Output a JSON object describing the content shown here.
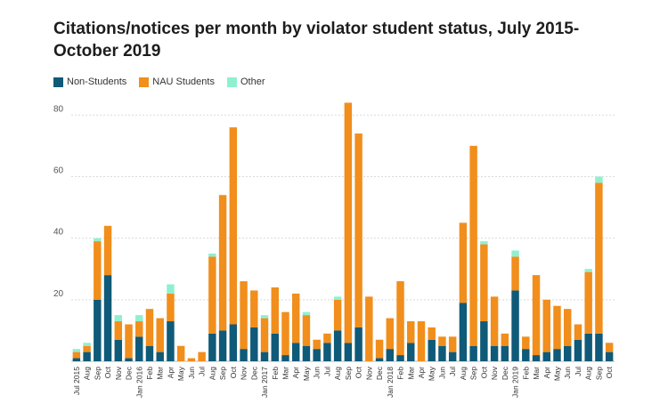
{
  "title": "Citations/notices per month by violator student status, July 2015-October 2019",
  "colors": {
    "non_students": "#0f5a78",
    "nau_students": "#f18e1c",
    "other": "#8ff0cf",
    "grid": "#d9d9d9"
  },
  "chart_data": {
    "type": "bar",
    "stacked": true,
    "title": "Citations/notices per month by violator student status, July 2015-October 2019",
    "ylim": [
      0,
      85
    ],
    "yticks": [
      20,
      40,
      60,
      80
    ],
    "grid": true,
    "legend_position": "top-left",
    "categories": [
      "Jul 2015",
      "Aug",
      "Sep",
      "Oct",
      "Nov",
      "Dec",
      "Jan 2016",
      "Feb",
      "Mar",
      "Apr",
      "May",
      "Jun",
      "Jul",
      "Aug",
      "Sep",
      "Oct",
      "Nov",
      "Dec",
      "Jan 2017",
      "Feb",
      "Mar",
      "Apr",
      "May",
      "Jun",
      "Jul",
      "Aug",
      "Sep",
      "Oct",
      "Nov",
      "Dec",
      "Jan 2018",
      "Feb",
      "Mar",
      "Apr",
      "May",
      "Jun",
      "Jul",
      "Aug",
      "Sep",
      "Oct",
      "Nov",
      "Dec",
      "Jan 2019",
      "Feb",
      "Mar",
      "Apr",
      "May",
      "Jun",
      "Jul",
      "Aug",
      "Sep",
      "Oct"
    ],
    "series": [
      {
        "name": "Non-Students",
        "values": [
          1,
          3,
          20,
          28,
          7,
          1,
          8,
          5,
          3,
          13,
          0,
          0,
          0,
          9,
          10,
          12,
          4,
          11,
          3,
          9,
          2,
          6,
          5,
          4,
          6,
          10,
          6,
          11,
          0,
          1,
          4,
          2,
          6,
          0,
          7,
          5,
          3,
          19,
          5,
          13,
          5,
          5,
          23,
          4,
          2,
          3,
          4,
          5,
          7,
          9,
          9,
          3
        ]
      },
      {
        "name": "NAU Students",
        "values": [
          2,
          2,
          19,
          16,
          6,
          11,
          5,
          12,
          11,
          9,
          5,
          1,
          3,
          25,
          44,
          64,
          22,
          12,
          11,
          15,
          14,
          16,
          10,
          3,
          3,
          10,
          78,
          63,
          21,
          6,
          10,
          24,
          7,
          13,
          4,
          3,
          5,
          26,
          65,
          25,
          16,
          4,
          11,
          4,
          26,
          17,
          14,
          12,
          5,
          20,
          49,
          3
        ]
      },
      {
        "name": "Other",
        "values": [
          1,
          1,
          1,
          0,
          2,
          0,
          2,
          0,
          0,
          3,
          0,
          0,
          0,
          1,
          0,
          0,
          0,
          0,
          1,
          0,
          0,
          0,
          1,
          0,
          0,
          1,
          0,
          0,
          0,
          0,
          0,
          0,
          0,
          0,
          0,
          0,
          0,
          0,
          0,
          1,
          0,
          0,
          2,
          0,
          0,
          0,
          0,
          0,
          0,
          1,
          2,
          0
        ]
      }
    ]
  }
}
